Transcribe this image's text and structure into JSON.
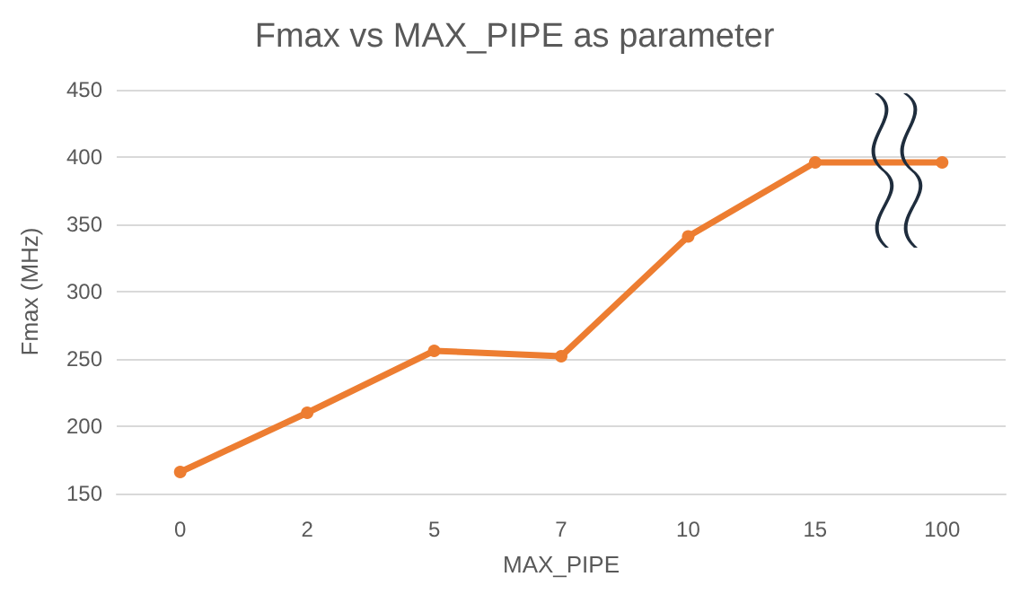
{
  "chart_data": {
    "type": "line",
    "title": "Fmax vs MAX_PIPE as parameter",
    "xlabel": "MAX_PIPE",
    "ylabel": "Fmax (MHz)",
    "categories": [
      "0",
      "2",
      "5",
      "7",
      "10",
      "15",
      "100"
    ],
    "series": [
      {
        "color": "#ed7d31",
        "values": [
          166,
          210,
          256,
          252,
          341,
          396,
          396
        ]
      }
    ],
    "ylim": [
      150,
      450
    ],
    "yticks": [
      150,
      200,
      250,
      300,
      350,
      400,
      450
    ],
    "grid": "y",
    "marker": "circle",
    "line_style": "solid"
  }
}
